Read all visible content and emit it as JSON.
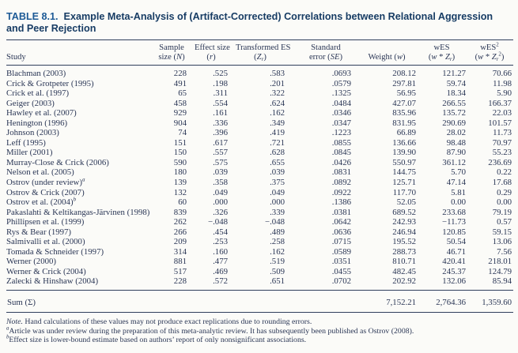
{
  "title": {
    "label": "TABLE 8.1.",
    "text": "Example Meta-Analysis of (Artifact-Corrected) Correlations between Relational Aggression and Peer Rejection"
  },
  "table": {
    "columns": [
      {
        "id": "study",
        "align": "left",
        "line1": [],
        "line2": [
          {
            "t": "Study"
          }
        ]
      },
      {
        "id": "sample-size",
        "align": "center",
        "line1": [
          {
            "t": "Sample"
          }
        ],
        "line2": [
          {
            "t": "size ("
          },
          {
            "t": "N",
            "i": true
          },
          {
            "t": ")"
          }
        ]
      },
      {
        "id": "effect-size",
        "align": "center",
        "line1": [
          {
            "t": "Effect size"
          }
        ],
        "line2": [
          {
            "t": "("
          },
          {
            "t": "r",
            "i": true
          },
          {
            "t": ")"
          }
        ]
      },
      {
        "id": "transformed-es",
        "align": "center",
        "line1": [
          {
            "t": "Transformed ES"
          }
        ],
        "line2": [
          {
            "t": "("
          },
          {
            "t": "Z",
            "i": true
          },
          {
            "t": "r",
            "i": true,
            "sub": true
          },
          {
            "t": ")"
          }
        ]
      },
      {
        "id": "standard-error",
        "align": "center",
        "line1": [
          {
            "t": "Standard"
          }
        ],
        "line2": [
          {
            "t": "error ("
          },
          {
            "t": "SE",
            "i": true
          },
          {
            "t": ")"
          }
        ]
      },
      {
        "id": "weight",
        "align": "center",
        "line1": [],
        "line2": [
          {
            "t": "Weight ("
          },
          {
            "t": "w",
            "i": true
          },
          {
            "t": ")"
          }
        ]
      },
      {
        "id": "wes",
        "align": "center",
        "line1": [
          {
            "t": "wES"
          }
        ],
        "line2": [
          {
            "t": "("
          },
          {
            "t": "w",
            "i": true
          },
          {
            "t": " * "
          },
          {
            "t": "Z",
            "i": true
          },
          {
            "t": "r",
            "i": true,
            "sub": true
          },
          {
            "t": ")"
          }
        ]
      },
      {
        "id": "wes-squared",
        "align": "center",
        "line1": [
          {
            "t": "wES"
          },
          {
            "t": "2",
            "sup": true
          }
        ],
        "line2": [
          {
            "t": "("
          },
          {
            "t": "w",
            "i": true
          },
          {
            "t": " * "
          },
          {
            "t": "Z",
            "i": true
          },
          {
            "t": "r",
            "i": true,
            "sub": true
          },
          {
            "t": "2",
            "sup": true
          },
          {
            "t": ")"
          }
        ]
      }
    ],
    "rows": [
      {
        "study": "Blachman (2003)",
        "values": [
          "228",
          ".525",
          ".583",
          ".0693",
          "208.12",
          "121.27",
          "70.66"
        ]
      },
      {
        "study": "Crick & Grotpeter (1995)",
        "values": [
          "491",
          ".198",
          ".201",
          ".0579",
          "297.81",
          "59.74",
          "11.98"
        ]
      },
      {
        "study": "Crick et al. (1997)",
        "values": [
          "65",
          ".311",
          ".322",
          ".1325",
          "56.95",
          "18.34",
          "5.90"
        ]
      },
      {
        "study": "Geiger (2003)",
        "values": [
          "458",
          ".554",
          ".624",
          ".0484",
          "427.07",
          "266.55",
          "166.37"
        ]
      },
      {
        "study": "Hawley et al. (2007)",
        "values": [
          "929",
          ".161",
          ".162",
          ".0346",
          "835.96",
          "135.72",
          "22.03"
        ]
      },
      {
        "study": "Henington (1996)",
        "values": [
          "904",
          ".336",
          ".349",
          ".0347",
          "831.95",
          "290.69",
          "101.57"
        ]
      },
      {
        "study": "Johnson (2003)",
        "values": [
          "74",
          ".396",
          ".419",
          ".1223",
          "66.89",
          "28.02",
          "11.73"
        ]
      },
      {
        "study": "Leff (1995)",
        "values": [
          "151",
          ".617",
          ".721",
          ".0855",
          "136.66",
          "98.48",
          "70.97"
        ]
      },
      {
        "study": "Miller (2001)",
        "values": [
          "150",
          ".557",
          ".628",
          ".0845",
          "139.90",
          "87.90",
          "55.23"
        ]
      },
      {
        "study": "Murray-Close & Crick (2006)",
        "values": [
          "590",
          ".575",
          ".655",
          ".0426",
          "550.97",
          "361.12",
          "236.69"
        ]
      },
      {
        "study": "Nelson et al. (2005)",
        "values": [
          "180",
          ".039",
          ".039",
          ".0831",
          "144.75",
          "5.70",
          "0.22"
        ]
      },
      {
        "study": "Ostrov (under review)",
        "sup": "a",
        "values": [
          "139",
          ".358",
          ".375",
          ".0892",
          "125.71",
          "47.14",
          "17.68"
        ]
      },
      {
        "study": "Ostrov & Crick (2007)",
        "values": [
          "132",
          ".049",
          ".049",
          ".0922",
          "117.70",
          "5.81",
          "0.29"
        ]
      },
      {
        "study": "Ostrov et al. (2004)",
        "sup": "b",
        "values": [
          "60",
          ".000",
          ".000",
          ".1386",
          "52.05",
          "0.00",
          "0.00"
        ]
      },
      {
        "study": "Pakaslahti & Keltikangas-Järvinen (1998)",
        "values": [
          "839",
          ".326",
          ".339",
          ".0381",
          "689.52",
          "233.68",
          "79.19"
        ]
      },
      {
        "study": "Phillipsen et al. (1999)",
        "values": [
          "262",
          "−.048",
          "−.048",
          ".0642",
          "242.93",
          "−11.73",
          "0.57"
        ]
      },
      {
        "study": "Rys & Bear (1997)",
        "values": [
          "266",
          ".454",
          ".489",
          ".0636",
          "246.94",
          "120.85",
          "59.15"
        ]
      },
      {
        "study": "Salmivalli et al. (2000)",
        "values": [
          "209",
          ".253",
          ".258",
          ".0715",
          "195.52",
          "50.54",
          "13.06"
        ]
      },
      {
        "study": "Tomada & Schneider (1997)",
        "values": [
          "314",
          ".160",
          ".162",
          ".0589",
          "288.73",
          "46.71",
          "7.56"
        ]
      },
      {
        "study": "Werner (2000)",
        "values": [
          "881",
          ".477",
          ".519",
          ".0351",
          "810.71",
          "420.41",
          "218.01"
        ]
      },
      {
        "study": "Werner & Crick (2004)",
        "values": [
          "517",
          ".469",
          ".509",
          ".0455",
          "482.45",
          "245.37",
          "124.79"
        ]
      },
      {
        "study": "Zalecki & Hinshaw (2004)",
        "values": [
          "228",
          ".572",
          ".651",
          ".0702",
          "202.92",
          "132.06",
          "85.94"
        ]
      }
    ],
    "sum": {
      "label": "Sum (Σ)",
      "values": [
        "",
        "",
        "",
        "",
        "7,152.21",
        "2,764.36",
        "1,359.60"
      ]
    }
  },
  "footnotes": [
    {
      "segments": [
        {
          "t": "Note.",
          "i": true
        },
        {
          "t": " Hand calculations of these values may not produce exact replications due to rounding errors."
        }
      ]
    },
    {
      "segments": [
        {
          "t": "a",
          "sup": true,
          "i": true
        },
        {
          "t": "Article was under review during the preparation of this meta-analytic review. It has subsequently been published as Ostrov (2008)."
        }
      ]
    },
    {
      "segments": [
        {
          "t": "b",
          "sup": true,
          "i": true
        },
        {
          "t": "Effect size is lower-bound estimate based on authors’ report of only nonsignificant associations."
        }
      ]
    }
  ]
}
